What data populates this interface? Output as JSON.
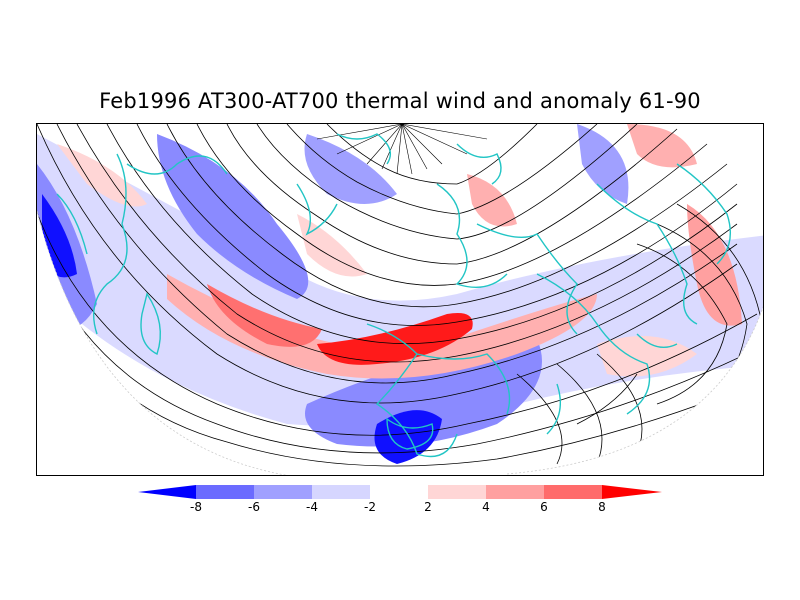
{
  "title": "Feb1996 AT300-AT700 thermal wind and anomaly 61-90",
  "colorbar": {
    "labels": [
      "-8",
      "-6",
      "-4",
      "-2",
      "2",
      "4",
      "6",
      "8"
    ],
    "colors": [
      "#0000ff",
      "#6b6bff",
      "#a0a0ff",
      "#d6d6ff",
      "#ffffff",
      "#ffd6d6",
      "#ffa0a0",
      "#ff6b6b",
      "#ff0000"
    ]
  },
  "map": {
    "projection": "polar stereographic, northern hemisphere",
    "overlays": [
      "thermal wind streamlines",
      "anomaly shading",
      "coastlines"
    ],
    "coastline_color": "#22c5c5",
    "streamline_color": "#000000"
  }
}
